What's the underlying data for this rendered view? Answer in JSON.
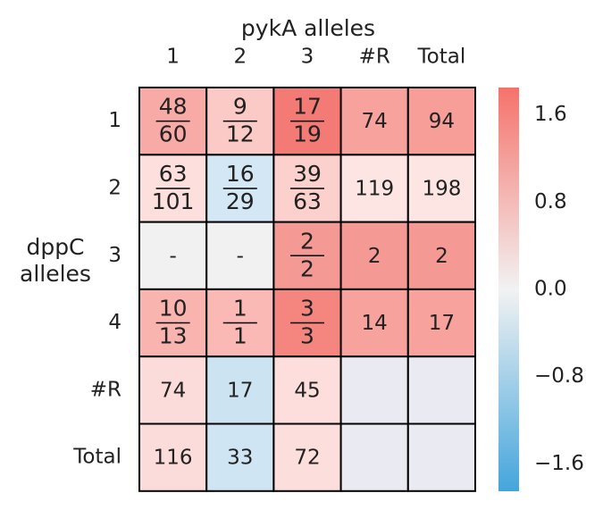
{
  "chart_data": {
    "type": "heatmap",
    "x_label": "pykA alleles",
    "y_label": [
      "dppC",
      "alleles"
    ],
    "x_categories": [
      "1",
      "2",
      "3",
      "#R",
      "Total"
    ],
    "y_categories": [
      "1",
      "2",
      "3",
      "4",
      "#R",
      "Total"
    ],
    "cells": [
      [
        {
          "numerator": "48",
          "denominator": "60",
          "color": "#f7aaa6"
        },
        {
          "numerator": "9",
          "denominator": "12",
          "color": "#fbc9c6"
        },
        {
          "numerator": "17",
          "denominator": "19",
          "color": "#f47a75"
        },
        {
          "text": "74",
          "color": "#f8a29e"
        },
        {
          "text": "94",
          "color": "#f79e99"
        }
      ],
      [
        {
          "numerator": "63",
          "denominator": "101",
          "color": "#fde0de"
        },
        {
          "numerator": "16",
          "denominator": "29",
          "color": "#d3e7f4"
        },
        {
          "numerator": "39",
          "denominator": "63",
          "color": "#fcd0cd"
        },
        {
          "text": "119",
          "color": "#fde5e4"
        },
        {
          "text": "198",
          "color": "#fde5e4"
        }
      ],
      [
        {
          "text": "-",
          "color": "#f1f1f1"
        },
        {
          "text": "-",
          "color": "#f1f1f1"
        },
        {
          "numerator": "2",
          "denominator": "2",
          "color": "#f59994"
        },
        {
          "text": "2",
          "color": "#f59994"
        },
        {
          "text": "2",
          "color": "#f59994"
        }
      ],
      [
        {
          "numerator": "10",
          "denominator": "13",
          "color": "#fab4b0"
        },
        {
          "numerator": "1",
          "denominator": "1",
          "color": "#fab9b5"
        },
        {
          "numerator": "3",
          "denominator": "3",
          "color": "#f4857f"
        },
        {
          "text": "14",
          "color": "#f8a29e"
        },
        {
          "text": "17",
          "color": "#f8a29e"
        }
      ],
      [
        {
          "text": "74",
          "color": "#fcdcda"
        },
        {
          "text": "17",
          "color": "#cce3f2"
        },
        {
          "text": "45",
          "color": "#fddedc"
        },
        {
          "color": "#eaeaf2"
        },
        {
          "color": "#eaeaf2"
        }
      ],
      [
        {
          "text": "116",
          "color": "#fcdcda"
        },
        {
          "text": "33",
          "color": "#cfe5f3"
        },
        {
          "text": "72",
          "color": "#fcdedc"
        },
        {
          "color": "#eaeaf2"
        },
        {
          "color": "#eaeaf2"
        }
      ]
    ],
    "colorbar": {
      "lim": [
        -1.85,
        1.85
      ],
      "ticks": [
        {
          "value": -1.6,
          "label": "−1.6"
        },
        {
          "value": -0.8,
          "label": "−0.8"
        },
        {
          "value": 0,
          "label": "0.0"
        },
        0.8,
        1.6
      ],
      "colors": [
        "#44a5dc",
        "#f2f2f2",
        "#f6726b"
      ]
    }
  }
}
